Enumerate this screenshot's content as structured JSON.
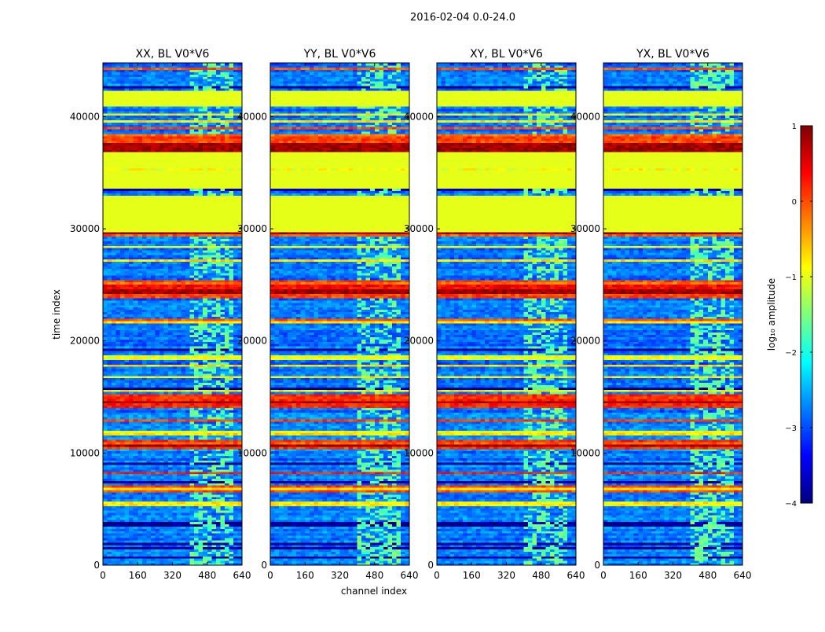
{
  "figure": {
    "suptitle": "2016-02-04 0.0-24.0",
    "xlabel": "channel index",
    "ylabel": "time index"
  },
  "chart_data": [
    {
      "type": "heatmap",
      "title": "XX, BL V0*V6",
      "xlim": [
        0,
        640
      ],
      "ylim": [
        0,
        44800
      ],
      "xticks": [
        0,
        160,
        320,
        480,
        640
      ],
      "yticks": [
        0,
        10000,
        20000,
        30000,
        40000
      ],
      "cmap": "jet",
      "vmin": -4,
      "vmax": 1
    },
    {
      "type": "heatmap",
      "title": "YY, BL V0*V6",
      "xlim": [
        0,
        640
      ],
      "ylim": [
        0,
        44800
      ],
      "xticks": [
        0,
        160,
        320,
        480,
        640
      ],
      "yticks": [
        0,
        10000,
        20000,
        30000,
        40000
      ],
      "cmap": "jet",
      "vmin": -4,
      "vmax": 1
    },
    {
      "type": "heatmap",
      "title": "XY, BL V0*V6",
      "xlim": [
        0,
        640
      ],
      "ylim": [
        0,
        44800
      ],
      "xticks": [
        0,
        160,
        320,
        480,
        640
      ],
      "yticks": [
        0,
        10000,
        20000,
        30000,
        40000
      ],
      "cmap": "jet",
      "vmin": -4,
      "vmax": 1
    },
    {
      "type": "heatmap",
      "title": "YX, BL V0*V6",
      "xlim": [
        0,
        640
      ],
      "ylim": [
        0,
        44800
      ],
      "xticks": [
        0,
        160,
        320,
        480,
        640
      ],
      "yticks": [
        0,
        10000,
        20000,
        30000,
        40000
      ],
      "cmap": "jet",
      "vmin": -4,
      "vmax": 1
    }
  ],
  "colorbar": {
    "label": "log₁₀ amplitude",
    "min": -4,
    "max": 1,
    "ticks": [
      1,
      0,
      -1,
      -2,
      -3,
      -4
    ],
    "tick_labels": [
      "1",
      "0",
      "−1",
      "−2",
      "−3",
      "−4"
    ],
    "colors": [
      "#00007f",
      "#0000ff",
      "#007fff",
      "#00ffff",
      "#7fff7f",
      "#ffff00",
      "#ff7f00",
      "#ff0000",
      "#7f0000"
    ]
  },
  "time_structure": {
    "flagged_value": -1,
    "flagged_time_ranges": [
      [
        29800,
        33000
      ],
      [
        33500,
        35200
      ],
      [
        35500,
        36900
      ],
      [
        41000,
        42300
      ]
    ],
    "rfi_channel_range": [
      400,
      590
    ],
    "hot_time_ranges": [
      [
        10300,
        11300
      ],
      [
        14100,
        15200
      ],
      [
        23800,
        25400
      ],
      [
        29400,
        29800
      ],
      [
        37000,
        38500
      ]
    ],
    "saturated_time_ranges": [
      [
        36900,
        37600
      ],
      [
        29500,
        29700
      ],
      [
        24300,
        24600
      ],
      [
        14500,
        14700
      ],
      [
        10500,
        10700
      ]
    ]
  }
}
